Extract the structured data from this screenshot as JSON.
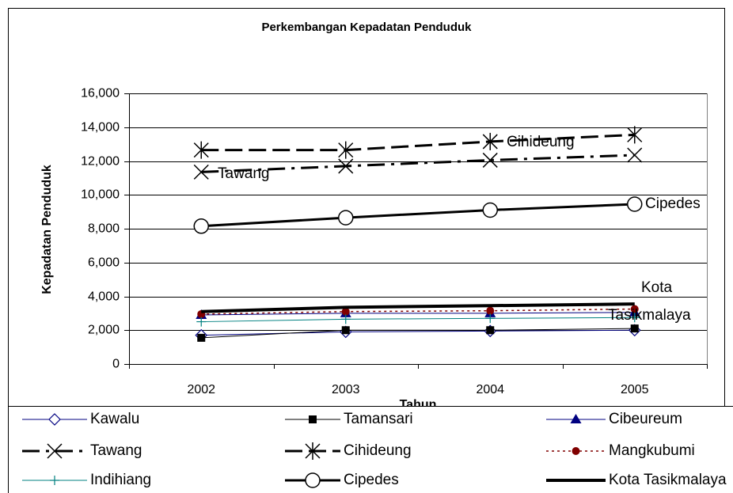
{
  "chart_data": {
    "type": "line",
    "title": "Perkembangan Kepadatan Penduduk",
    "y_label": "Kepadatan Penduduk",
    "x_label": "Tahun",
    "categories": [
      "2002",
      "2003",
      "2004",
      "2005"
    ],
    "ylim": [
      0,
      16000
    ],
    "yticks": [
      0,
      {
        "value": 2000,
        "label": "2,000"
      },
      {
        "value": 4000,
        "label": "4,000"
      },
      {
        "value": 6000,
        "label": "6,000"
      },
      {
        "value": 8000,
        "label": "8,000"
      },
      {
        "value": 10000,
        "label": "10,000"
      },
      {
        "value": 12000,
        "label": "12,000"
      },
      {
        "value": 14000,
        "label": "14,000"
      },
      {
        "value": 16000,
        "label": "16,000"
      }
    ],
    "grid": true,
    "legend": "bottom",
    "series": [
      {
        "name": "Kawalu",
        "color": "#000080",
        "marker": "diamond",
        "line_style": "solid",
        "values": [
          1700,
          1900,
          1950,
          2000
        ]
      },
      {
        "name": "Tamansari",
        "color": "#000000",
        "marker": "square",
        "line_style": "solid",
        "values": [
          1550,
          2000,
          2000,
          2100
        ]
      },
      {
        "name": "Cibeureum",
        "color": "#000080",
        "marker": "triangle",
        "line_style": "solid",
        "values": [
          2900,
          3000,
          3000,
          3050
        ]
      },
      {
        "name": "Tawang",
        "color": "#000000",
        "marker": "x",
        "line_style": "dashdot",
        "values": [
          11350,
          11700,
          12050,
          12350
        ]
      },
      {
        "name": "Cihideung",
        "color": "#000000",
        "marker": "star",
        "line_style": "dashed",
        "values": [
          12650,
          12650,
          13150,
          13550
        ]
      },
      {
        "name": "Mangkubumi",
        "color": "#800000",
        "marker": "dot",
        "line_style": "dotted",
        "values": [
          2950,
          3100,
          3150,
          3250
        ]
      },
      {
        "name": "Indihiang",
        "color": "#008080",
        "marker": "plus",
        "line_style": "solid",
        "values": [
          2500,
          2650,
          2700,
          2750
        ]
      },
      {
        "name": "Cipedes",
        "color": "#000000",
        "marker": "circle",
        "line_style": "medium",
        "values": [
          8150,
          8650,
          9100,
          9450
        ]
      },
      {
        "name": "Kota Tasikmalaya",
        "color": "#000000",
        "marker": "none",
        "line_style": "thick",
        "values": [
          3100,
          3350,
          3450,
          3550
        ]
      }
    ],
    "annotations": [
      "Tawang",
      "Cihideung",
      "Cipedes",
      "Kota",
      "Tasikmalaya"
    ]
  }
}
